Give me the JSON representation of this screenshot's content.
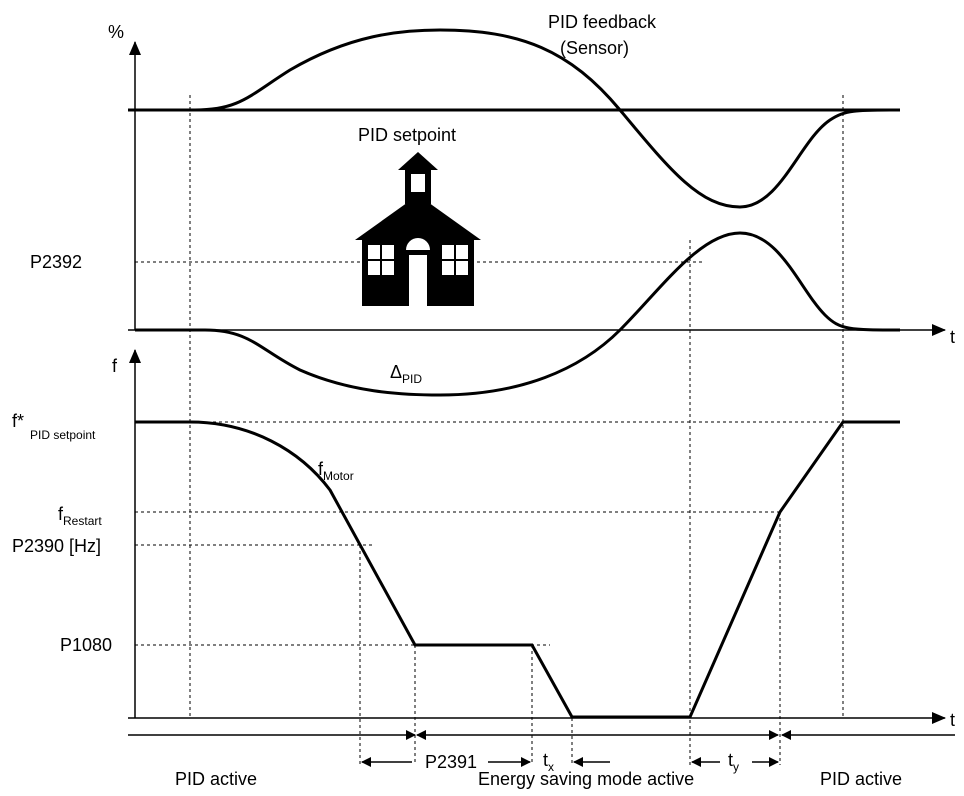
{
  "top_axis": {
    "y_label": "%",
    "t_label": "t"
  },
  "feedback_label": [
    "PID feedback",
    "(Sensor)"
  ],
  "setpoint_label": "PID setpoint",
  "p2392": "P2392",
  "delta": {
    "main": "Δ",
    "sub": "PID"
  },
  "bottom_axis": {
    "y_label": "f",
    "t_label": "t"
  },
  "f_setpoint": {
    "main": "f*",
    "sub": "PID setpoint"
  },
  "f_motor": {
    "main": "f",
    "sub": "Motor"
  },
  "f_restart": {
    "main": "f",
    "sub": "Restart"
  },
  "p2390": "P2390 [Hz]",
  "p1080": "P1080",
  "p2391": "P2391",
  "tx": {
    "main": "t",
    "sub": "x"
  },
  "ty": {
    "main": "t",
    "sub": "y"
  },
  "phases": [
    "PID active",
    "Energy saving mode active",
    "PID active"
  ]
}
